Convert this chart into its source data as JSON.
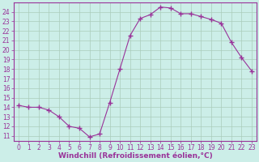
{
  "x": [
    0,
    1,
    2,
    3,
    4,
    5,
    6,
    7,
    8,
    9,
    10,
    11,
    12,
    13,
    14,
    15,
    16,
    17,
    18,
    19,
    20,
    21,
    22,
    23
  ],
  "y": [
    14.2,
    14.0,
    14.0,
    13.7,
    13.0,
    12.0,
    11.8,
    10.9,
    11.2,
    14.5,
    18.0,
    21.5,
    23.3,
    23.7,
    24.5,
    24.4,
    23.8,
    23.8,
    23.5,
    23.2,
    22.8,
    20.8,
    19.2,
    17.8
  ],
  "line_color": "#993399",
  "marker": "+",
  "marker_size": 4,
  "bg_color": "#cceee8",
  "grid_color": "#aaccbb",
  "xlabel": "Windchill (Refroidissement éolien,°C)",
  "xlabel_color": "#993399",
  "xlim": [
    -0.5,
    23.5
  ],
  "ylim": [
    10.5,
    25.0
  ],
  "yticks": [
    11,
    12,
    13,
    14,
    15,
    16,
    17,
    18,
    19,
    20,
    21,
    22,
    23,
    24
  ],
  "xticks": [
    0,
    1,
    2,
    3,
    4,
    5,
    6,
    7,
    8,
    9,
    10,
    11,
    12,
    13,
    14,
    15,
    16,
    17,
    18,
    19,
    20,
    21,
    22,
    23
  ],
  "tick_color": "#993399",
  "spine_color": "#993399",
  "tick_font_size": 5.5,
  "xlabel_font_size": 6.5
}
